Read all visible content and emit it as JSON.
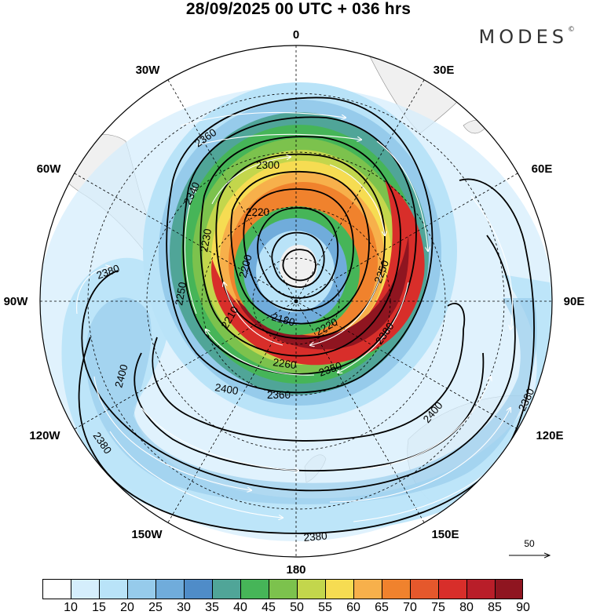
{
  "header": {
    "title": "28/09/2025  00 UTC  + 036 hrs",
    "brand": "MODES",
    "brand_mark": "©"
  },
  "map": {
    "projection": "south-polar-stereographic",
    "longitude_labels": [
      {
        "name": "lon-0",
        "text": "0"
      },
      {
        "name": "lon-30e",
        "text": "30E"
      },
      {
        "name": "lon-60e",
        "text": "60E"
      },
      {
        "name": "lon-90e",
        "text": "90E"
      },
      {
        "name": "lon-120e",
        "text": "120E"
      },
      {
        "name": "lon-150e",
        "text": "150E"
      },
      {
        "name": "lon-180",
        "text": "180"
      },
      {
        "name": "lon-150w",
        "text": "150W"
      },
      {
        "name": "lon-120w",
        "text": "120W"
      },
      {
        "name": "lon-90w",
        "text": "90W"
      },
      {
        "name": "lon-60w",
        "text": "60W"
      },
      {
        "name": "lon-30w",
        "text": "30W"
      }
    ],
    "contour_labels": [
      "2360",
      "2300",
      "2340",
      "2220",
      "2230",
      "2200",
      "2180",
      "2220",
      "2260",
      "2350",
      "2360",
      "2400",
      "2380",
      "2400",
      "2380",
      "2380",
      "2400",
      "2380",
      "2380",
      "2250",
      "2250",
      "2210"
    ]
  },
  "wind_reference": {
    "value": "50"
  },
  "colorbar": {
    "colors": [
      "#ffffff",
      "#d5eefc",
      "#b9e3f8",
      "#96cbeb",
      "#70acdb",
      "#4f8cc8",
      "#50a598",
      "#46b558",
      "#7cc24d",
      "#c3d64c",
      "#f6dc52",
      "#f7b04b",
      "#f0822d",
      "#e5582c",
      "#d82e2a",
      "#b91e29",
      "#8f1520"
    ],
    "ticks": [
      "10",
      "15",
      "20",
      "25",
      "30",
      "35",
      "40",
      "45",
      "50",
      "55",
      "60",
      "65",
      "70",
      "75",
      "80",
      "85",
      "90"
    ]
  }
}
